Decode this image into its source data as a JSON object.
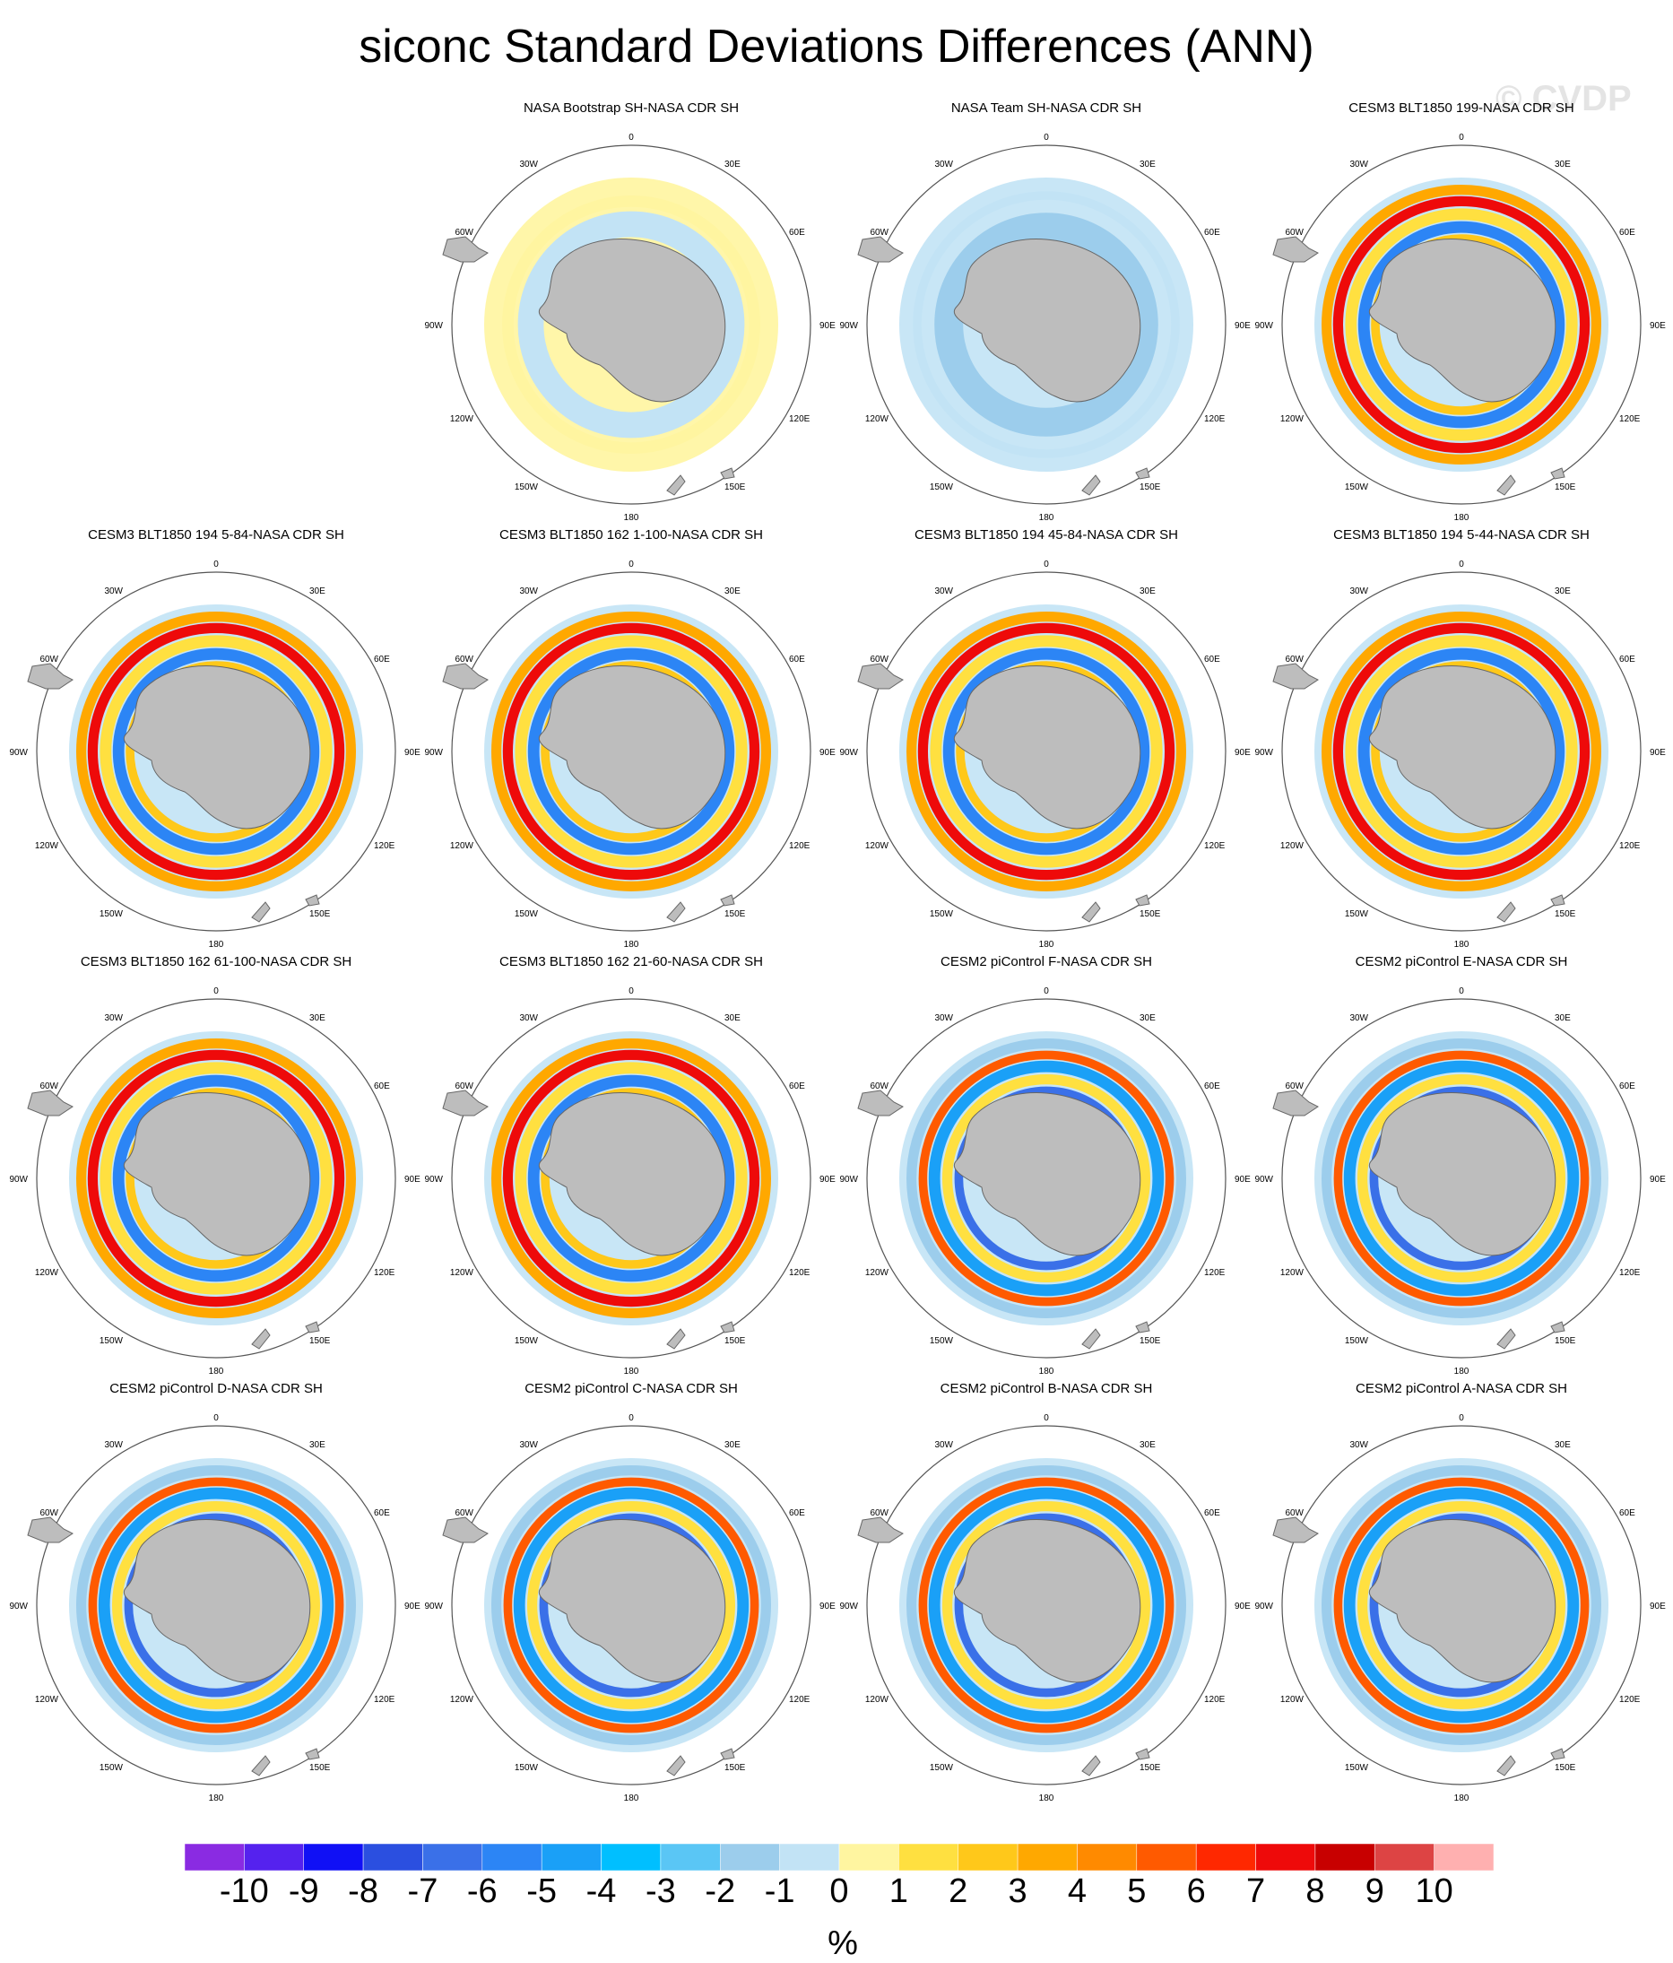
{
  "title": "siconc Standard Deviations Differences (ANN)",
  "watermark": "© CVDP",
  "map_labels": {
    "top": "0",
    "bottom": "180",
    "left": "90W",
    "right": "90E",
    "r30w": "30W",
    "r30e": "30E",
    "r60w": "60W",
    "r60e": "60E",
    "r120w": "120W",
    "r120e": "120E",
    "r150w": "150W",
    "r150e": "150E"
  },
  "panels": [
    {
      "title": "",
      "empty": true
    },
    {
      "title": "NASA Bootstrap SH-NASA CDR SH",
      "style": "bootstrap"
    },
    {
      "title": "NASA Team SH-NASA CDR SH",
      "style": "team"
    },
    {
      "title": "CESM3 BLT1850 199-NASA CDR SH",
      "style": "cesm3"
    },
    {
      "title": "CESM3 BLT1850 194 5-84-NASA CDR SH",
      "style": "cesm3"
    },
    {
      "title": "CESM3 BLT1850 162 1-100-NASA CDR SH",
      "style": "cesm3"
    },
    {
      "title": "CESM3 BLT1850 194 45-84-NASA CDR SH",
      "style": "cesm3"
    },
    {
      "title": "CESM3 BLT1850 194 5-44-NASA CDR SH",
      "style": "cesm3"
    },
    {
      "title": "CESM3 BLT1850 162 61-100-NASA CDR SH",
      "style": "cesm3"
    },
    {
      "title": "CESM3 BLT1850 162 21-60-NASA CDR SH",
      "style": "cesm3"
    },
    {
      "title": "CESM2 piControl F-NASA CDR SH",
      "style": "cesm2"
    },
    {
      "title": "CESM2 piControl E-NASA CDR SH",
      "style": "cesm2"
    },
    {
      "title": "CESM2 piControl D-NASA CDR SH",
      "style": "cesm2"
    },
    {
      "title": "CESM2 piControl C-NASA CDR SH",
      "style": "cesm2"
    },
    {
      "title": "CESM2 piControl B-NASA CDR SH",
      "style": "cesm2"
    },
    {
      "title": "CESM2 piControl A-NASA CDR SH",
      "style": "cesm2"
    }
  ],
  "colorbar": {
    "colors": [
      "#8a2be2",
      "#5522ee",
      "#1010f5",
      "#2b4fe0",
      "#3a70e8",
      "#2c85f5",
      "#1aa0f7",
      "#00bfff",
      "#5ac6f5",
      "#9ccdec",
      "#c2e3f5",
      "#fff5a0",
      "#ffe040",
      "#ffc81a",
      "#ffa800",
      "#ff8a00",
      "#ff5a00",
      "#ff2800",
      "#ee0a0a",
      "#c80000",
      "#dd4444",
      "#ffb0b0"
    ],
    "labels": [
      "-10",
      "-9",
      "-8",
      "-7",
      "-6",
      "-5",
      "-4",
      "-3",
      "-2",
      "-1",
      "0",
      "1",
      "2",
      "3",
      "4",
      "5",
      "6",
      "7",
      "8",
      "9",
      "10"
    ],
    "unit": "%"
  }
}
